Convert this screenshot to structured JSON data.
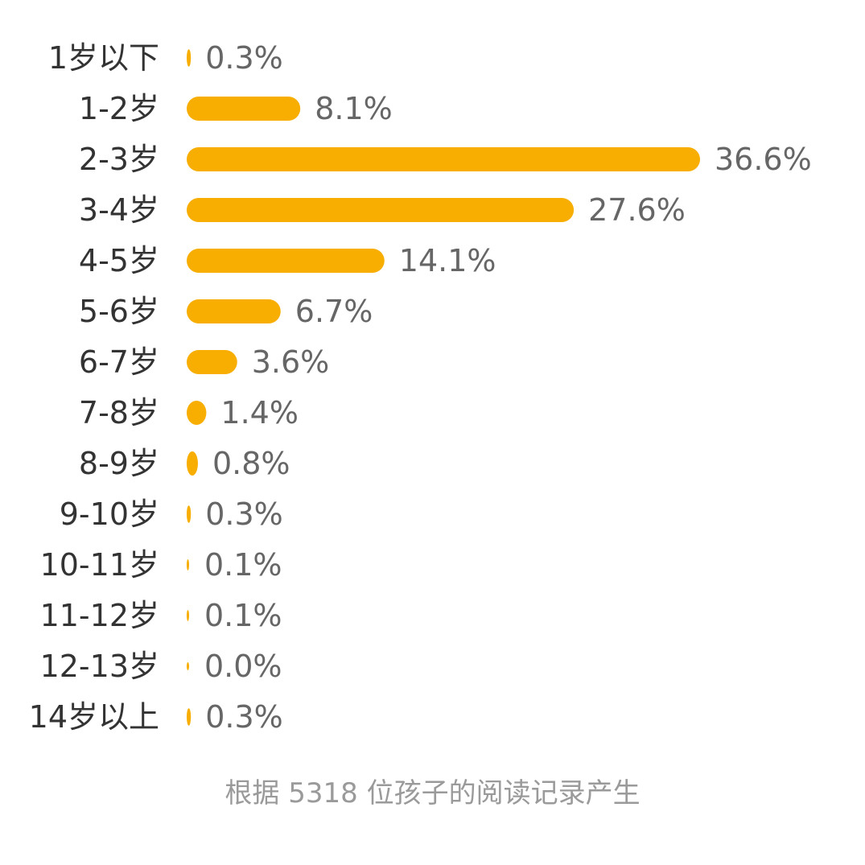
{
  "chart_data": {
    "type": "bar",
    "orientation": "horizontal",
    "categories": [
      "1岁以下",
      "1-2岁",
      "2-3岁",
      "3-4岁",
      "4-5岁",
      "5-6岁",
      "6-7岁",
      "7-8岁",
      "8-9岁",
      "9-10岁",
      "10-11岁",
      "11-12岁",
      "12-13岁",
      "14岁以上"
    ],
    "values": [
      0.3,
      8.1,
      36.6,
      27.6,
      14.1,
      6.7,
      3.6,
      1.4,
      0.8,
      0.3,
      0.1,
      0.1,
      0.0,
      0.3
    ],
    "value_labels": [
      "0.3%",
      "8.1%",
      "36.6%",
      "27.6%",
      "14.1%",
      "6.7%",
      "3.6%",
      "1.4%",
      "0.8%",
      "0.3%",
      "0.1%",
      "0.1%",
      "0.0%",
      "0.3%"
    ],
    "unit": "%",
    "xlim": [
      0,
      36.6
    ],
    "grid": false,
    "legend": "none",
    "bar_color": "#F8AE00"
  },
  "footnote": "根据 5318 位孩子的阅读记录产生"
}
